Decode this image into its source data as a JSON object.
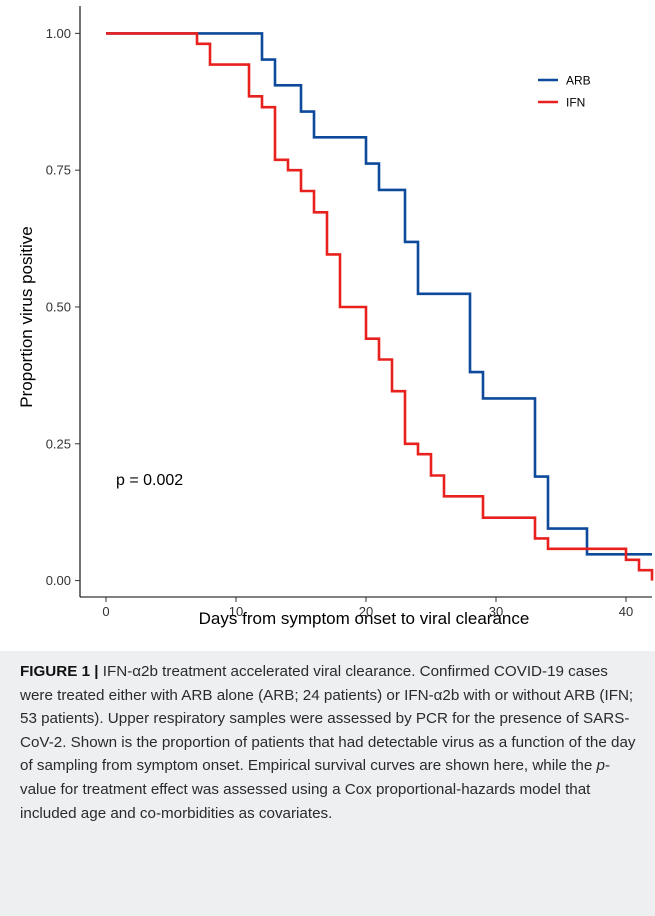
{
  "chart_data": {
    "type": "line",
    "step": true,
    "xlabel": "Days from symptom onset to viral clearance",
    "ylabel": "Proportion virus positive",
    "xlim": [
      -2,
      42
    ],
    "ylim": [
      -0.03,
      1.05
    ],
    "xticks": [
      0,
      10,
      20,
      30,
      40
    ],
    "xtick_labels": [
      "0",
      "10",
      "20",
      "30",
      "40"
    ],
    "yticks": [
      0,
      0.25,
      0.5,
      0.75,
      1.0
    ],
    "ytick_labels": [
      "0.00",
      "0.25",
      "0.50",
      "0.75",
      "1.00"
    ],
    "grid": false,
    "legend_position": "top-right",
    "annotation": "p = 0.002",
    "series": [
      {
        "name": "ARB",
        "color": "#0d4a9b",
        "x": [
          0,
          12,
          13,
          15,
          16,
          20,
          21,
          23,
          24,
          28,
          29,
          33,
          34,
          37,
          42
        ],
        "y": [
          1.0,
          0.952,
          0.905,
          0.857,
          0.81,
          0.762,
          0.714,
          0.619,
          0.524,
          0.381,
          0.333,
          0.19,
          0.095,
          0.048,
          0.048
        ]
      },
      {
        "name": "IFN",
        "color": "#e8211e",
        "x": [
          0,
          7,
          8,
          11,
          12,
          13,
          14,
          15,
          16,
          17,
          18,
          20,
          21,
          22,
          23,
          24,
          25,
          26,
          29,
          33,
          34,
          40,
          41,
          42
        ],
        "y": [
          1.0,
          0.981,
          0.943,
          0.885,
          0.865,
          0.769,
          0.75,
          0.712,
          0.673,
          0.596,
          0.5,
          0.442,
          0.404,
          0.346,
          0.25,
          0.231,
          0.192,
          0.154,
          0.115,
          0.077,
          0.058,
          0.038,
          0.019,
          0.0
        ]
      }
    ]
  },
  "caption": {
    "label": "FIGURE 1 |",
    "text_1": "IFN-α2b treatment accelerated viral clearance. Confirmed COVID-19 cases were treated either with ARB alone (ARB; 24 patients) or IFN-α2b with or without ARB (IFN; 53 patients). Upper respiratory samples were assessed by PCR for the presence of SARS-CoV-2. Shown is the proportion of patients that had detectable virus as a function of the day of sampling from symptom onset. Empirical survival curves are shown here, while the ",
    "p_italic": "p",
    "text_2": "-value for treatment effect was assessed using a Cox proportional-hazards model that included age and co-morbidities as covariates."
  }
}
